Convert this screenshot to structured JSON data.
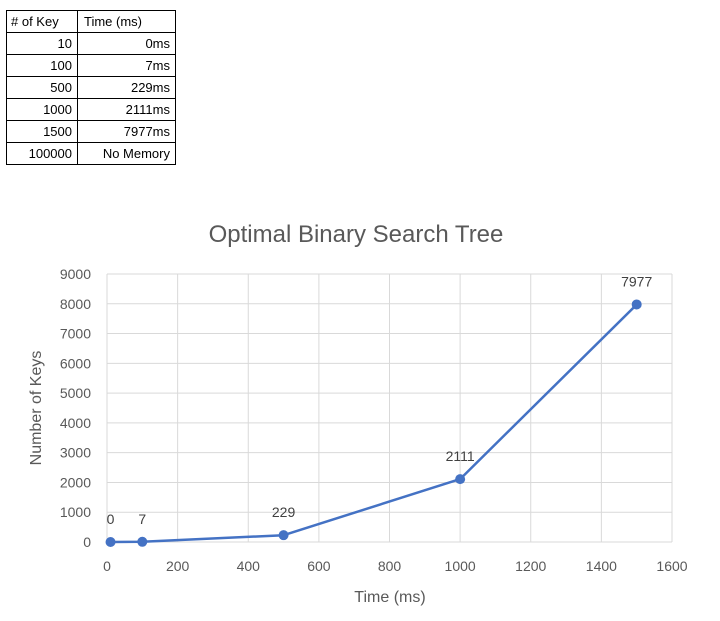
{
  "table": {
    "headers": [
      "# of Key",
      "Time (ms)"
    ],
    "rows": [
      [
        "10",
        "0ms"
      ],
      [
        "100",
        "7ms"
      ],
      [
        "500",
        "229ms"
      ],
      [
        "1000",
        "2111ms"
      ],
      [
        "1500",
        "7977ms"
      ],
      [
        "100000",
        "No Memory"
      ]
    ]
  },
  "chart_data": {
    "type": "scatter",
    "title": "Optimal Binary Search Tree",
    "xlabel": "Time (ms)",
    "ylabel": "Number of Keys",
    "xlim": [
      0,
      1600
    ],
    "ylim": [
      0,
      9000
    ],
    "x_ticks": [
      "0",
      "200",
      "400",
      "600",
      "800",
      "1000",
      "1200",
      "1400",
      "1600"
    ],
    "y_ticks": [
      "0",
      "1000",
      "2000",
      "3000",
      "4000",
      "5000",
      "6000",
      "7000",
      "8000",
      "9000"
    ],
    "grid": true,
    "lines_connected": true,
    "series_color": "#4472C4",
    "series": [
      {
        "x": [
          10,
          100,
          500,
          1000,
          1500
        ],
        "y": [
          0,
          7,
          229,
          2111,
          7977
        ],
        "labels": [
          "0",
          "7",
          "229",
          "2111",
          "7977"
        ]
      }
    ]
  }
}
